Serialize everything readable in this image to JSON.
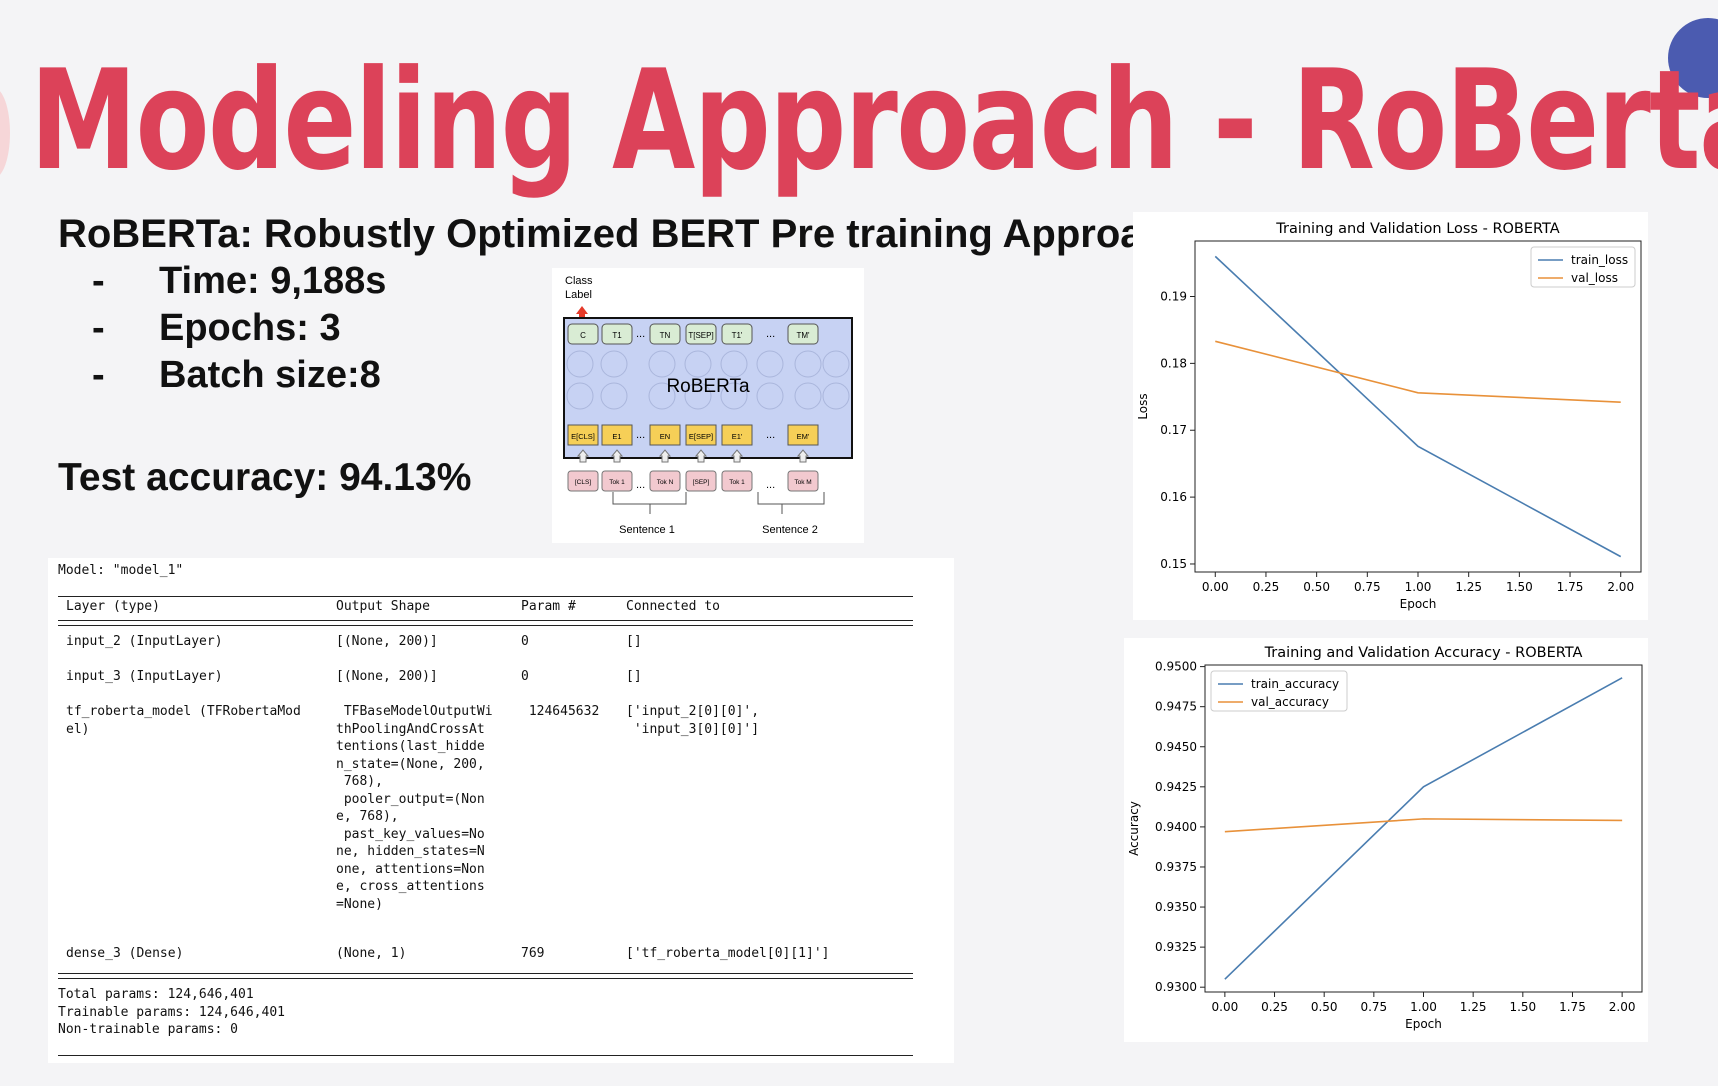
{
  "slide": {
    "title": "Modeling Approach - RoBerta",
    "subtitle": "RoBERTa: Robustly Optimized BERT Pre training Approach",
    "bullets": [
      {
        "dash": "-",
        "text": "Time: 9,188s"
      },
      {
        "dash": "-",
        "text": "Epochs: 3"
      },
      {
        "dash": "-",
        "text": "Batch size:8"
      }
    ],
    "test_accuracy": "Test accuracy: 94.13%",
    "colors": {
      "title": "#dc4259",
      "train": "#4a7db0",
      "val": "#e8913a"
    }
  },
  "architecture": {
    "class_label": [
      "Class",
      "Label"
    ],
    "model_name": "RoBERTa",
    "outputs": [
      "C",
      "T1",
      "...",
      "TN",
      "T[SEP]",
      "T1'",
      "...",
      "TM'"
    ],
    "embeddings": [
      "E[CLS]",
      "E1",
      "...",
      "EN",
      "E[SEP]",
      "E1'",
      "...",
      "EM'"
    ],
    "tokens": [
      "[CLS]",
      "Tok 1",
      "...",
      "Tok N",
      "[SEP]",
      "Tok 1",
      "...",
      "Tok M"
    ],
    "sentences": [
      "Sentence 1",
      "Sentence 2"
    ]
  },
  "model_summary": {
    "model_line": "Model: \"model_1\"",
    "headers": [
      "Layer (type)",
      "Output Shape",
      "Param #",
      "Connected to"
    ],
    "rows": [
      {
        "layer": [
          "input_2 (InputLayer)"
        ],
        "shape": [
          "[(None, 200)]"
        ],
        "params": "0",
        "connected": [
          "[]"
        ]
      },
      {
        "layer": [
          "input_3 (InputLayer)"
        ],
        "shape": [
          "[(None, 200)]"
        ],
        "params": "0",
        "connected": [
          "[]"
        ]
      },
      {
        "layer": [
          "tf_roberta_model (TFRobertaMod",
          "el)"
        ],
        "shape": [
          " TFBaseModelOutputWi",
          "thPoolingAndCrossAt",
          "tentions(last_hidde",
          "n_state=(None, 200,",
          " 768),",
          " pooler_output=(Non",
          "e, 768),",
          " past_key_values=No",
          "ne, hidden_states=N",
          "one, attentions=Non",
          "e, cross_attentions",
          "=None)"
        ],
        "params": " 124645632",
        "connected": [
          "['input_2[0][0]',",
          " 'input_3[0][0]']"
        ]
      },
      {
        "layer": [
          "dense_3 (Dense)"
        ],
        "shape": [
          "(None, 1)"
        ],
        "params": "769",
        "connected": [
          "['tf_roberta_model[0][1]']"
        ]
      }
    ],
    "totals": [
      "Total params: 124,646,401",
      "Trainable params: 124,646,401",
      "Non-trainable params: 0"
    ]
  },
  "chart_data": [
    {
      "type": "line",
      "title": "Training and Validation Loss - ROBERTA",
      "xlabel": "Epoch",
      "ylabel": "Loss",
      "x": [
        0,
        1,
        2
      ],
      "series": [
        {
          "name": "train_loss",
          "values": [
            0.196,
            0.1676,
            0.1511
          ]
        },
        {
          "name": "val_loss",
          "values": [
            0.1833,
            0.1756,
            0.1742
          ]
        }
      ],
      "xlim": [
        -0.1,
        2.1
      ],
      "ylim": [
        0.1488,
        0.1983
      ],
      "xticks": [
        "0.00",
        "0.25",
        "0.50",
        "0.75",
        "1.00",
        "1.25",
        "1.50",
        "1.75",
        "2.00"
      ],
      "yticks": [
        "0.15",
        "0.16",
        "0.17",
        "0.18",
        "0.19"
      ],
      "legend": "top-right",
      "grid": false
    },
    {
      "type": "line",
      "title": "Training and Validation Accuracy - ROBERTA",
      "xlabel": "Epoch",
      "ylabel": "Accuracy",
      "x": [
        0,
        1,
        2
      ],
      "series": [
        {
          "name": "train_accuracy",
          "values": [
            0.9305,
            0.9425,
            0.9493
          ]
        },
        {
          "name": "val_accuracy",
          "values": [
            0.9397,
            0.9405,
            0.9404
          ]
        }
      ],
      "xlim": [
        -0.1,
        2.1
      ],
      "ylim": [
        0.9297,
        0.9501
      ],
      "xticks": [
        "0.00",
        "0.25",
        "0.50",
        "0.75",
        "1.00",
        "1.25",
        "1.50",
        "1.75",
        "2.00"
      ],
      "yticks": [
        "0.9300",
        "0.9325",
        "0.9350",
        "0.9375",
        "0.9400",
        "0.9425",
        "0.9450",
        "0.9475",
        "0.9500"
      ],
      "legend": "top-left",
      "grid": false
    }
  ]
}
